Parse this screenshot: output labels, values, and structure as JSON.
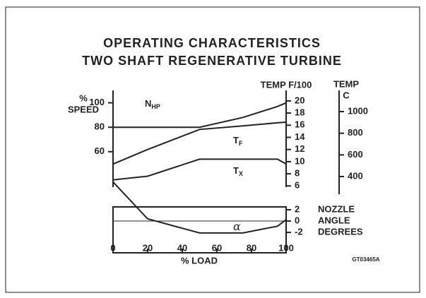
{
  "chart_data": {
    "type": "line",
    "title": "OPERATING CHARACTERISTICS",
    "subtitle": "TWO SHAFT REGENERATIVE TURBINE",
    "xlabel": "% LOAD",
    "ylabel": [
      "%",
      "SPEED"
    ],
    "y2label": "TEMP F/100",
    "y3label": [
      "NOZZLE",
      "ANGLE",
      "DEGREES"
    ],
    "y4label": [
      "TEMP",
      "C"
    ],
    "code": "GT03465A",
    "x": [
      0,
      20,
      50,
      75,
      95,
      100
    ],
    "xlim": [
      0,
      100
    ],
    "xticks": [
      0,
      20,
      40,
      60,
      80,
      100
    ],
    "ylim": [
      31,
      109
    ],
    "yticks": [
      60,
      80,
      100
    ],
    "y2lim": [
      5.8,
      21.5
    ],
    "y2ticks": [
      6,
      8,
      10,
      12,
      14,
      16,
      18,
      20
    ],
    "y3lim": [
      -5.6,
      2.5
    ],
    "y3ticks": [
      {
        "value": -2,
        "label": "-2"
      },
      0,
      2
    ],
    "y4lim": [
      237,
      1196
    ],
    "y4ticks": [
      400,
      600,
      800,
      1000
    ],
    "series": [
      {
        "name": "N",
        "sub": "HP",
        "color": "#222",
        "axis": "y",
        "values": [
          80,
          80,
          80,
          88,
          97,
          100
        ]
      },
      {
        "name": "T",
        "sub": "F",
        "color": "#222",
        "axis": "y2",
        "values": [
          9.6,
          12,
          15.3,
          15.9,
          16.4,
          16.5
        ]
      },
      {
        "name": "T",
        "sub": "X",
        "color": "#222",
        "axis": "y2",
        "values": [
          7,
          7.6,
          10.4,
          10.4,
          10.4,
          9.6
        ]
      },
      {
        "name": "α",
        "color": "#222",
        "axis": "y3",
        "values": [
          6.9,
          0.4,
          -2.1,
          -2.1,
          -0.9,
          0.25
        ]
      }
    ]
  }
}
